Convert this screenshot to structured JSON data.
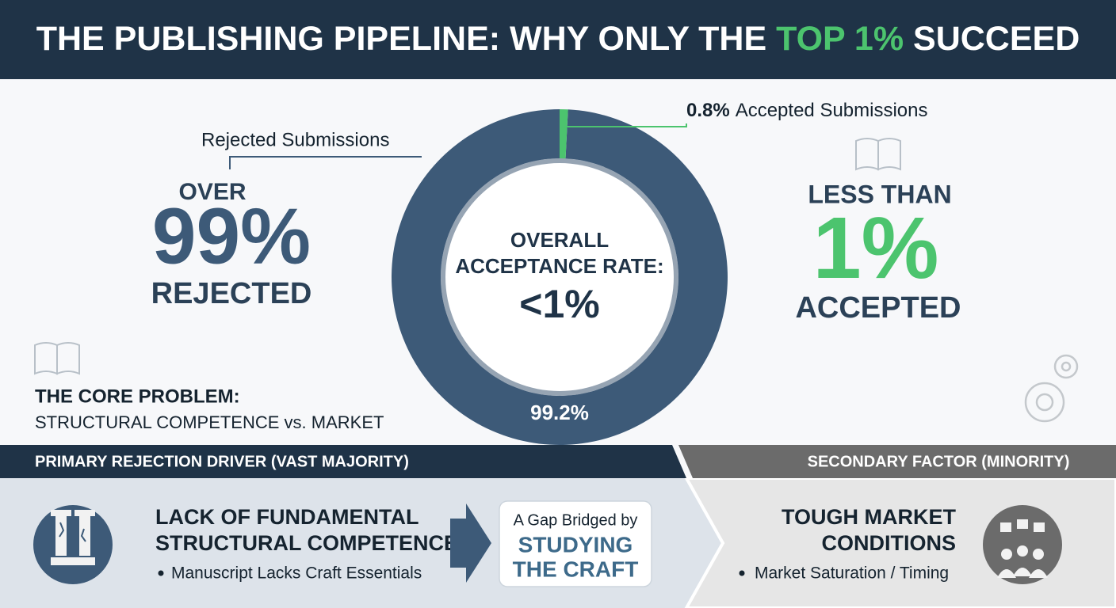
{
  "header": {
    "title": [
      "THE PUBLISHING PIPELINE: WHY ONLY THE ",
      "TOP 1%",
      " SUCCEED"
    ]
  },
  "chart_data": {
    "type": "donut",
    "categories": [
      "Rejected Submissions",
      "Accepted Submissions"
    ],
    "values": [
      99.2,
      0.8
    ],
    "value_labels": [
      "99.2%",
      "0.8%"
    ],
    "colors": [
      "#3d5a78",
      "#4cc46e"
    ],
    "center_label": [
      "OVERALL",
      "ACCEPTANCE RATE:",
      "<1%"
    ]
  },
  "left_stat": {
    "top": "OVER",
    "big": "99%",
    "bottom": "REJECTED"
  },
  "right_stat": {
    "top": "LESS THAN",
    "big": "1%",
    "bottom": "ACCEPTED"
  },
  "core_problem": {
    "title": "THE CORE PROBLEM:",
    "text": "STRUCTURAL COMPETENCE vs. MARKET"
  },
  "primary": {
    "banner": "PRIMARY REJECTION DRIVER (VAST MAJORITY)",
    "heading": [
      "LACK OF FUNDAMENTAL",
      "STRUCTURAL COMPETENCE"
    ],
    "bullet": "Manuscript Lacks Craft Essentials"
  },
  "bridge": {
    "lead": "A Gap Bridged by",
    "emphasis": [
      "STUDYING",
      "THE CRAFT"
    ]
  },
  "secondary": {
    "banner": "SECONDARY FACTOR (MINORITY)",
    "heading": [
      "TOUGH MARKET",
      "CONDITIONS"
    ],
    "bullet": "Market Saturation / Timing"
  }
}
